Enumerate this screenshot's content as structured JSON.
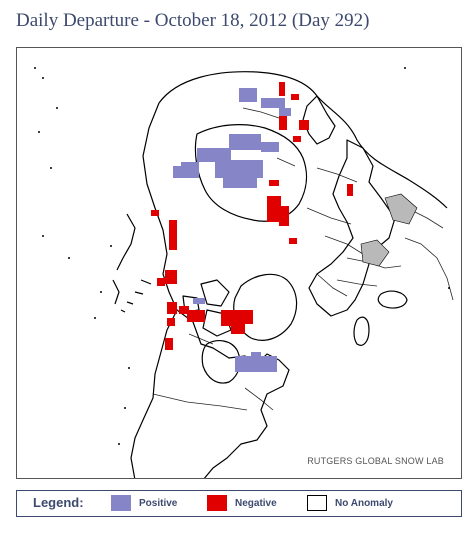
{
  "title": "Daily Departure - October 18, 2012 (Day 292)",
  "map": {
    "credit": "RUTGERS GLOBAL SNOW LAB",
    "colors": {
      "positive": "#8585c8",
      "negative": "#e00000",
      "land": "#ffffff",
      "ocean": "#ffffff",
      "coast": "#000000"
    }
  },
  "legend": {
    "label": "Legend:",
    "items": [
      {
        "label": "Positive",
        "color": "#8585c8"
      },
      {
        "label": "Negative",
        "color": "#e00000"
      },
      {
        "label": "No Anomaly",
        "color": "#ffffff"
      }
    ]
  }
}
